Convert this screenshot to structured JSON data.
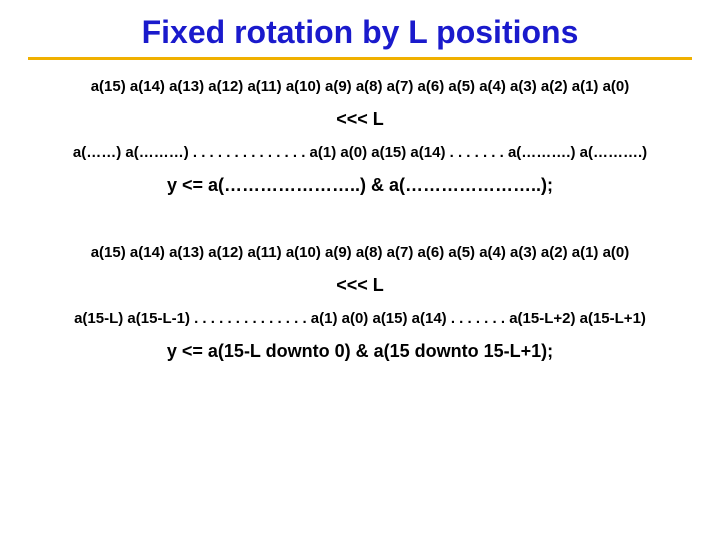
{
  "colors": {
    "title": "#1a1acc",
    "underline": "#f0b000",
    "divider": "#cc0000",
    "text": "#000000",
    "background": "#ffffff"
  },
  "title": "Fixed rotation by L positions",
  "top": {
    "sequence": "a(15) a(14) a(13) a(12) a(11) a(10) a(9) a(8) a(7) a(6) a(5) a(4) a(3) a(2) a(1) a(0)",
    "shift": "<<< L",
    "rotated": "a(……) a(………) . . . . . . . . . . . . . . a(1) a(0) a(15) a(14) . . . . . . . a(……….) a(……….)",
    "expr": "y <= a(…………………..) & a(…………………..);"
  },
  "bottom": {
    "sequence": "a(15) a(14) a(13) a(12) a(11) a(10) a(9) a(8) a(7) a(6) a(5) a(4) a(3) a(2) a(1) a(0)",
    "shift": "<<< L",
    "rotated": "a(15-L) a(15-L-1) . . . . . . . . . . . . . . a(1) a(0) a(15) a(14) . . . . . . . a(15-L+2) a(15-L+1)",
    "expr": "y <= a(15-L downto 0) & a(15 downto 15-L+1);"
  },
  "typography": {
    "title_fontsize": 32,
    "seq_fontsize": 15,
    "shift_fontsize": 18,
    "expr_fontsize": 18,
    "weight": "bold"
  }
}
